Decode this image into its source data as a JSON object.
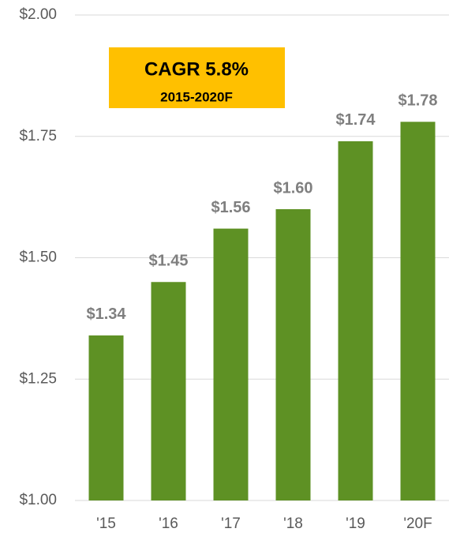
{
  "chart_data": {
    "type": "bar",
    "categories": [
      "'15",
      "'16",
      "'17",
      "'18",
      "'19",
      "'20F"
    ],
    "values": [
      1.34,
      1.45,
      1.56,
      1.6,
      1.74,
      1.78
    ],
    "value_labels": [
      "$1.34",
      "$1.45",
      "$1.56",
      "$1.60",
      "$1.74",
      "$1.78"
    ],
    "color": "#5e9124",
    "ylim": [
      1.0,
      2.0
    ],
    "yticks": [
      {
        "value": 1.0,
        "label": "$1.00"
      },
      {
        "value": 1.25,
        "label": "$1.25"
      },
      {
        "value": 1.5,
        "label": "$1.50"
      },
      {
        "value": 1.75,
        "label": "$1.75"
      },
      {
        "value": 2.0,
        "label": "$2.00"
      }
    ],
    "grid": true,
    "annotations": [
      "CAGR 5.8%",
      "2015-2020F"
    ]
  }
}
